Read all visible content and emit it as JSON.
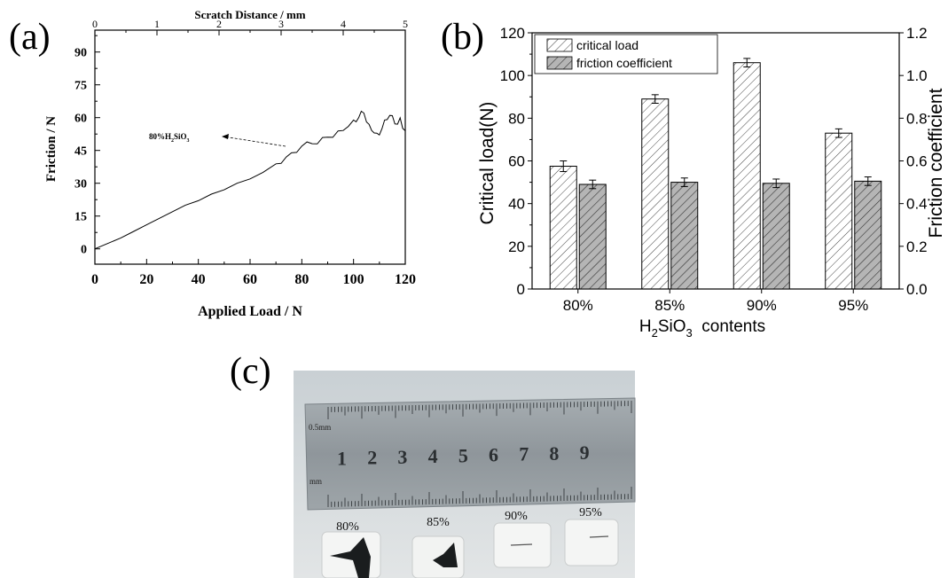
{
  "panels": {
    "a": {
      "label": "(a)"
    },
    "b": {
      "label": "(b)"
    },
    "c": {
      "label": "(c)"
    }
  },
  "chart_data": [
    {
      "panel": "a",
      "type": "line",
      "xlabel": "Applied Load / N",
      "ylabel": "Friction / N",
      "top_xlabel": "Scratch Distance / mm",
      "xlim": [
        0,
        120
      ],
      "ylim": [
        -7,
        100
      ],
      "top_xlim": [
        0,
        5
      ],
      "xticks": [
        0,
        20,
        40,
        60,
        80,
        100,
        120
      ],
      "yticks": [
        0,
        15,
        30,
        45,
        60,
        75,
        90
      ],
      "top_xticks": [
        0,
        1,
        2,
        3,
        4,
        5
      ],
      "grid": false,
      "annotation": {
        "text_main": "80%H",
        "sub1": "2",
        "text_mid": "SiO",
        "sub2": "3",
        "points_to": [
          72,
          38
        ]
      },
      "series": [
        {
          "x": [
            0,
            5,
            10,
            15,
            20,
            25,
            30,
            35,
            40,
            45,
            50,
            55,
            60,
            65,
            70,
            72,
            74,
            76,
            78,
            80,
            82,
            84,
            86,
            88,
            90,
            92,
            94,
            96,
            98,
            100,
            101,
            102,
            103,
            104,
            105,
            106,
            107,
            108,
            109,
            110,
            111,
            112,
            113,
            114,
            115,
            116,
            117,
            118,
            119,
            120
          ],
          "y": [
            0,
            2.5,
            5,
            8,
            11,
            14,
            17,
            20,
            22,
            25,
            27,
            30,
            32,
            35,
            38,
            40,
            42,
            43,
            45,
            47,
            48,
            49,
            48,
            50,
            52,
            51,
            53,
            55,
            56,
            58,
            59,
            60,
            62,
            63,
            58,
            56,
            55,
            53,
            52,
            53,
            55,
            58,
            60,
            61,
            60,
            58,
            57,
            59,
            56,
            54
          ]
        }
      ]
    },
    {
      "panel": "b",
      "type": "bar",
      "categories": [
        "80%",
        "85%",
        "90%",
        "95%"
      ],
      "xlabel": {
        "main": "H",
        "sub1": "2",
        "mid": "SiO",
        "sub2": "3",
        "tail": "  contents"
      },
      "ylabel": "Critical load(N)",
      "y2label": "Friction coefficient",
      "ylim": [
        0,
        120
      ],
      "y2lim": [
        0,
        1.2
      ],
      "yticks": [
        0,
        20,
        40,
        60,
        80,
        100,
        120
      ],
      "y2ticks": [
        "0.0",
        "0.2",
        "0.4",
        "0.6",
        "0.8",
        "1.0",
        "1.2"
      ],
      "legend_position": "top-left",
      "grid": false,
      "series": [
        {
          "name": "critical load",
          "axis": "left",
          "values": [
            57.5,
            89,
            106,
            73
          ],
          "errors": [
            2.5,
            2,
            2,
            2
          ]
        },
        {
          "name": "friction coefficient",
          "axis": "right",
          "values": [
            0.49,
            0.5,
            0.495,
            0.505
          ],
          "errors": [
            0.02,
            0.02,
            0.02,
            0.02
          ]
        }
      ]
    }
  ],
  "photo": {
    "ruler_marks": [
      "1",
      "2",
      "3",
      "4",
      "5",
      "6",
      "7",
      "8",
      "9"
    ],
    "ruler_small_text": "0.5mm",
    "ruler_unit_text": "mm",
    "sample_labels": [
      "80%",
      "85%",
      "90%",
      "95%"
    ]
  },
  "colors": {
    "line": "#000000",
    "bar_left_fill": "#ffffff",
    "bar_right_fill": "#b5b5b5",
    "ruler": "#9aa1a5",
    "photo_bg": "#d8dde0"
  }
}
